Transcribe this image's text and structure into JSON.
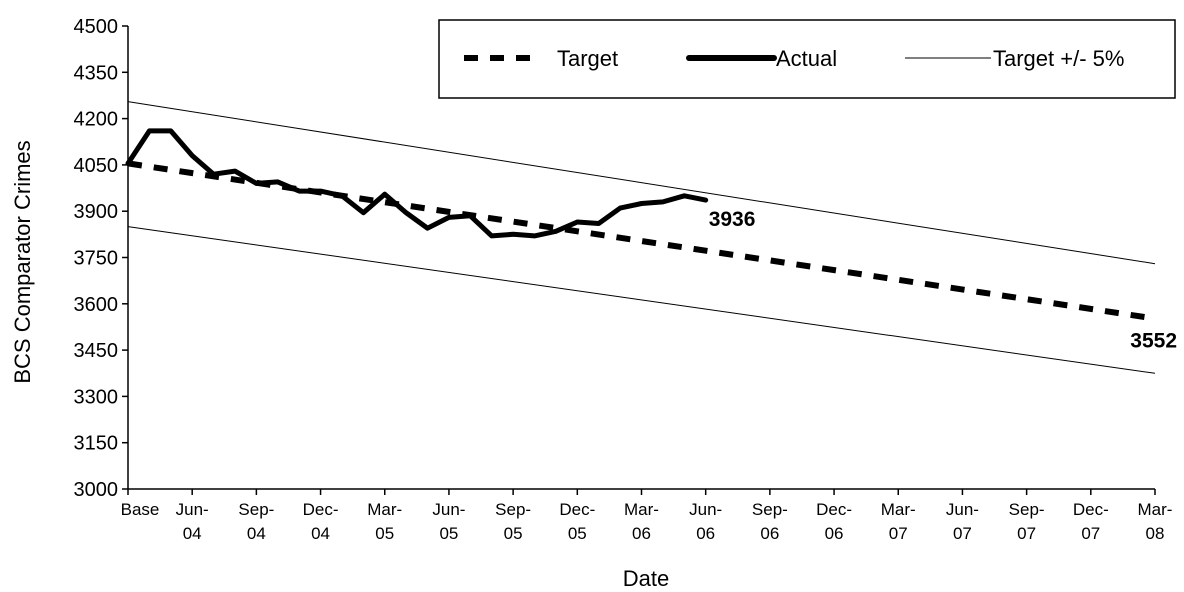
{
  "chart_data": {
    "type": "line",
    "xlabel": "Date",
    "ylabel": "BCS Comparator Crimes",
    "ylim": [
      3000,
      4500
    ],
    "yticks": [
      3000,
      3150,
      3300,
      3450,
      3600,
      3750,
      3900,
      4050,
      4200,
      4350,
      4500
    ],
    "x_tick_labels": [
      [
        "Base"
      ],
      [
        "Jun-",
        "04"
      ],
      [
        "Sep-",
        "04"
      ],
      [
        "Dec-",
        "04"
      ],
      [
        "Mar-",
        "05"
      ],
      [
        "Jun-",
        "05"
      ],
      [
        "Sep-",
        "05"
      ],
      [
        "Dec-",
        "05"
      ],
      [
        "Mar-",
        "06"
      ],
      [
        "Jun-",
        "06"
      ],
      [
        "Sep-",
        "06"
      ],
      [
        "Dec-",
        "06"
      ],
      [
        "Mar-",
        "07"
      ],
      [
        "Jun-",
        "07"
      ],
      [
        "Sep-",
        "07"
      ],
      [
        "Dec-",
        "07"
      ],
      [
        "Mar-",
        "08"
      ]
    ],
    "x_months": [
      "Base",
      "Apr-04",
      "May-04",
      "Jun-04",
      "Jul-04",
      "Aug-04",
      "Sep-04",
      "Oct-04",
      "Nov-04",
      "Dec-04",
      "Jan-05",
      "Feb-05",
      "Mar-05",
      "Apr-05",
      "May-05",
      "Jun-05",
      "Jul-05",
      "Aug-05",
      "Sep-05",
      "Oct-05",
      "Nov-05",
      "Dec-05",
      "Jan-06",
      "Feb-06",
      "Mar-06",
      "Apr-06",
      "May-06",
      "Jun-06",
      "Jul-06",
      "Aug-06",
      "Sep-06",
      "Oct-06",
      "Nov-06",
      "Dec-06",
      "Jan-07",
      "Feb-07",
      "Mar-07",
      "Apr-07",
      "May-07",
      "Jun-07",
      "Jul-07",
      "Aug-07",
      "Sep-07",
      "Oct-07",
      "Nov-07",
      "Dec-07",
      "Jan-08",
      "Feb-08",
      "Mar-08"
    ],
    "series": [
      {
        "name": "Target",
        "style": "dashed",
        "x": [
          "Base",
          "Mar-08"
        ],
        "values": [
          4055,
          3552
        ]
      },
      {
        "name": "Actual",
        "style": "thick",
        "x": [
          "Base",
          "Apr-04",
          "May-04",
          "Jun-04",
          "Jul-04",
          "Aug-04",
          "Sep-04",
          "Oct-04",
          "Nov-04",
          "Dec-04",
          "Jan-05",
          "Feb-05",
          "Mar-05",
          "Apr-05",
          "May-05",
          "Jun-05",
          "Jul-05",
          "Aug-05",
          "Sep-05",
          "Oct-05",
          "Nov-05",
          "Dec-05",
          "Jan-06",
          "Feb-06",
          "Mar-06",
          "Apr-06",
          "May-06",
          "Jun-06"
        ],
        "values": [
          4055,
          4160,
          4160,
          4080,
          4020,
          4030,
          3990,
          3995,
          3965,
          3965,
          3950,
          3895,
          3955,
          3895,
          3845,
          3880,
          3885,
          3820,
          3825,
          3820,
          3835,
          3865,
          3860,
          3910,
          3925,
          3930,
          3950,
          3936
        ]
      },
      {
        "name": "Target +/- 5%",
        "style": "thin",
        "x": [
          "Base",
          "Mar-08"
        ],
        "values": [
          4255,
          3730
        ]
      },
      {
        "name": "Target +/- 5%",
        "style": "thin",
        "x": [
          "Base",
          "Mar-08"
        ],
        "values": [
          3850,
          3375
        ]
      }
    ],
    "annotations": [
      {
        "text": "3936",
        "series": "Actual",
        "at": "Jun-06"
      },
      {
        "text": "3552",
        "series": "Target",
        "at": "Mar-08"
      }
    ],
    "legend": {
      "position": "top-right",
      "items": [
        {
          "label": "Target",
          "style": "dashed"
        },
        {
          "label": "Actual",
          "style": "thick"
        },
        {
          "label": "Target +/- 5%",
          "style": "thin"
        }
      ]
    },
    "grid": false
  }
}
